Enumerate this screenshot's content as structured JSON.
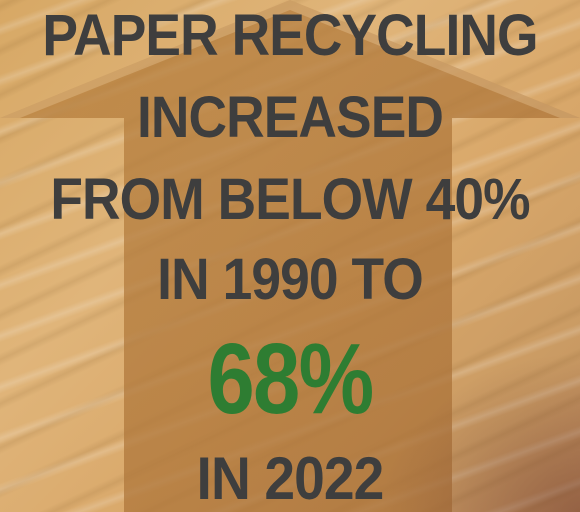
{
  "headline": {
    "line1": "PAPER RECYCLING",
    "line2": "INCREASED",
    "line3": "FROM BELOW 40%",
    "line4": "IN 1990 TO",
    "big_value": "68%",
    "line5": "IN 2022"
  },
  "colors": {
    "text": "#3e3e3e",
    "highlight": "#2e7d32",
    "background": "#d9a86a",
    "arrow": "#c48a52"
  },
  "icons": {
    "background_shape": "up-arrow-icon"
  }
}
